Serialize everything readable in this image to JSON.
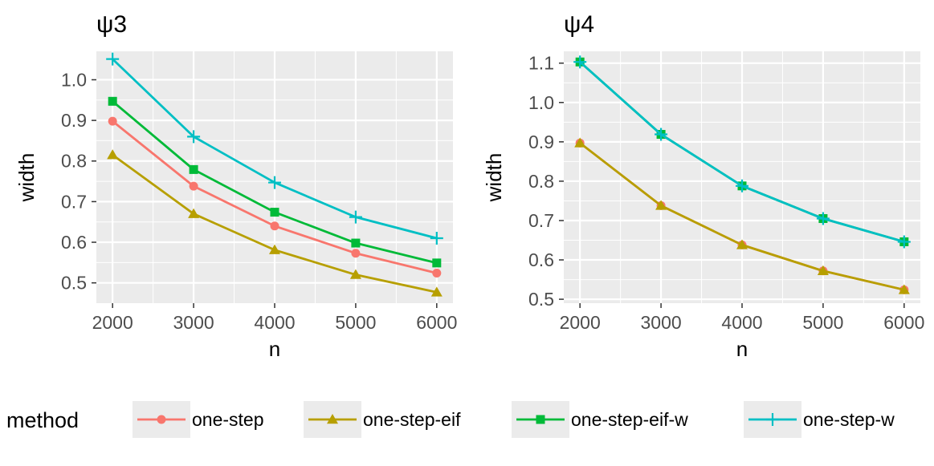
{
  "chart_data": [
    {
      "type": "line",
      "title": "ψ3",
      "xlabel": "n",
      "ylabel": "width",
      "x": [
        2000,
        3000,
        4000,
        5000,
        6000
      ],
      "xticks": [
        "2000",
        "3000",
        "4000",
        "5000",
        "6000"
      ],
      "yticks": [
        "0.5",
        "0.6",
        "0.7",
        "0.8",
        "0.9",
        "1.0"
      ],
      "yticks_values": [
        0.5,
        0.6,
        0.7,
        0.8,
        0.9,
        1.0
      ],
      "xlim": [
        1800,
        6200
      ],
      "ylim": [
        0.45,
        1.07
      ],
      "grid": true,
      "series": [
        {
          "name": "one-step",
          "values": [
            0.898,
            0.738,
            0.64,
            0.573,
            0.524
          ]
        },
        {
          "name": "one-step-eif",
          "values": [
            0.815,
            0.67,
            0.581,
            0.52,
            0.477
          ]
        },
        {
          "name": "one-step-eif-w",
          "values": [
            0.947,
            0.779,
            0.674,
            0.598,
            0.549
          ]
        },
        {
          "name": "one-step-w",
          "values": [
            1.051,
            0.86,
            0.747,
            0.662,
            0.61
          ]
        }
      ]
    },
    {
      "type": "line",
      "title": "ψ4",
      "xlabel": "n",
      "ylabel": "width",
      "x": [
        2000,
        3000,
        4000,
        5000,
        6000
      ],
      "xticks": [
        "2000",
        "3000",
        "4000",
        "5000",
        "6000"
      ],
      "yticks": [
        "0.5",
        "0.6",
        "0.7",
        "0.8",
        "0.9",
        "1.0",
        "1.1"
      ],
      "yticks_values": [
        0.5,
        0.6,
        0.7,
        0.8,
        0.9,
        1.0,
        1.1
      ],
      "xlim": [
        1800,
        6200
      ],
      "ylim": [
        0.49,
        1.13
      ],
      "grid": true,
      "series": [
        {
          "name": "one-step",
          "values": [
            0.897,
            0.738,
            0.638,
            0.572,
            0.524
          ]
        },
        {
          "name": "one-step-eif",
          "values": [
            0.897,
            0.738,
            0.638,
            0.572,
            0.524
          ]
        },
        {
          "name": "one-step-eif-w",
          "values": [
            1.103,
            0.919,
            0.788,
            0.705,
            0.646
          ]
        },
        {
          "name": "one-step-w",
          "values": [
            1.103,
            0.919,
            0.788,
            0.705,
            0.646
          ]
        }
      ]
    }
  ],
  "legend": {
    "title": "method",
    "position": "bottom",
    "items": [
      {
        "name": "one-step",
        "color": "#F8766D",
        "shape": "circle"
      },
      {
        "name": "one-step-eif",
        "color": "#B79F00",
        "shape": "triangle"
      },
      {
        "name": "one-step-eif-w",
        "color": "#00BA38",
        "shape": "square"
      },
      {
        "name": "one-step-w",
        "color": "#00BFC4",
        "shape": "plus"
      }
    ]
  },
  "colors": {
    "panel_background": "#EBEBEB",
    "grid": "#FFFFFF"
  }
}
